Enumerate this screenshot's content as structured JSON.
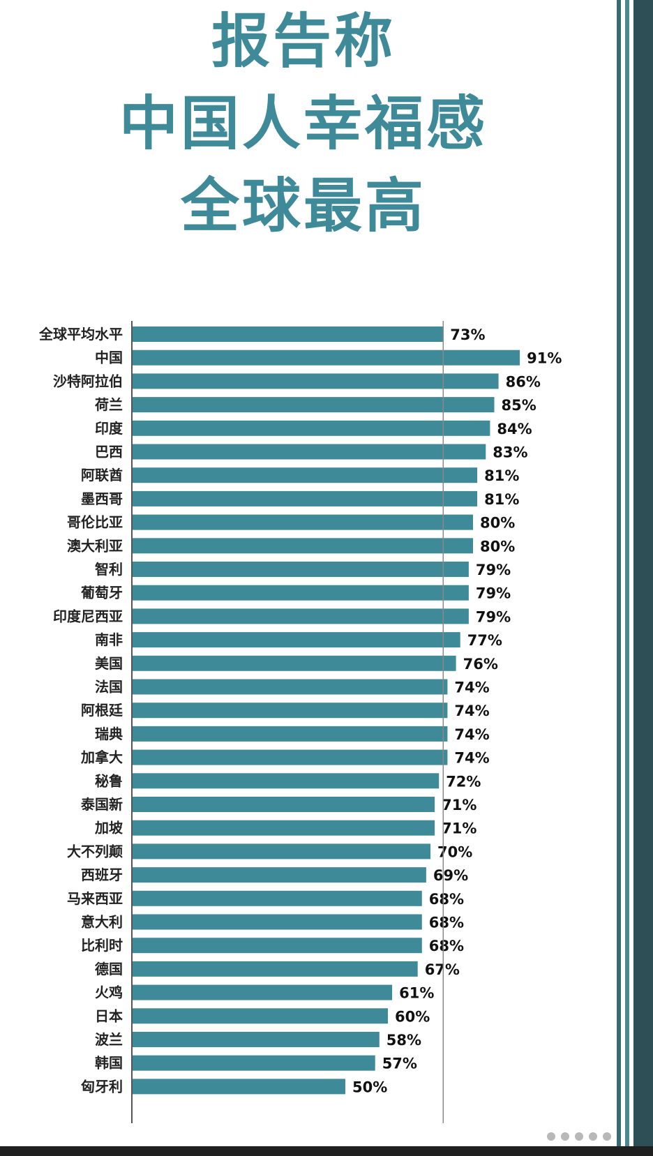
{
  "title": {
    "line1": "报告称",
    "line2": "中国人幸福感",
    "line3": "全球最高"
  },
  "colors": {
    "bar": "#3f8a98",
    "title": "#3f8a98",
    "reference_line": "#888888"
  },
  "chart_data": {
    "type": "bar",
    "orientation": "horizontal",
    "categories": [
      "全球平均水平",
      "中国",
      "沙特阿拉伯",
      "荷兰",
      "印度",
      "巴西",
      "阿联酋",
      "墨西哥",
      "哥伦比亚",
      "澳大利亚",
      "智利",
      "葡萄牙",
      "印度尼西亚",
      "南非",
      "美国",
      "法国",
      "阿根廷",
      "瑞典",
      "加拿大",
      "秘鲁",
      "泰国新",
      "加坡",
      "大不列颠",
      "西班牙",
      "马来西亚",
      "意大利",
      "比利时",
      "德国",
      "火鸡",
      "日本",
      "波兰",
      "韩国",
      "匈牙利"
    ],
    "values": [
      73,
      91,
      86,
      85,
      84,
      83,
      81,
      81,
      80,
      80,
      79,
      79,
      79,
      77,
      76,
      74,
      74,
      74,
      74,
      72,
      71,
      71,
      70,
      69,
      68,
      68,
      68,
      67,
      61,
      60,
      58,
      57,
      50
    ],
    "value_labels": [
      "73%",
      "91%",
      "86%",
      "85%",
      "84%",
      "83%",
      "81%",
      "81%",
      "80%",
      "80%",
      "79%",
      "79%",
      "79%",
      "77%",
      "76%",
      "74%",
      "74%",
      "74%",
      "74%",
      "72%",
      "71%",
      "71%",
      "70%",
      "69%",
      "68%",
      "68%",
      "68%",
      "67%",
      "61%",
      "60%",
      "58%",
      "57%",
      "50%"
    ],
    "reference_value": 73,
    "title": "",
    "xlabel": "",
    "ylabel": "",
    "grid": false,
    "legend": "none"
  }
}
